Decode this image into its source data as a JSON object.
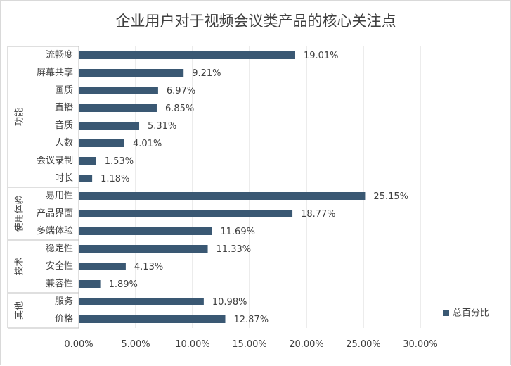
{
  "chart_data": {
    "type": "bar",
    "orientation": "horizontal",
    "title": "企业用户对于视频会议类产品的核心关注点",
    "xlabel": "",
    "ylabel": "",
    "xlim": [
      0,
      30
    ],
    "xticks": [
      "0.00%",
      "5.00%",
      "10.00%",
      "15.00%",
      "20.00%",
      "25.00%",
      "30.00%"
    ],
    "grid": true,
    "legend": {
      "position": "right",
      "entries": [
        "总百分比"
      ]
    },
    "bar_color": "#3a5873",
    "groups": [
      {
        "name": "功能",
        "categories": [
          "流畅度",
          "屏幕共享",
          "画质",
          "直播",
          "音质",
          "人数",
          "会议录制",
          "时长"
        ]
      },
      {
        "name": "使用体验",
        "categories": [
          "易用性",
          "产品界面",
          "多端体验"
        ]
      },
      {
        "name": "技术",
        "categories": [
          "稳定性",
          "安全性",
          "兼容性"
        ]
      },
      {
        "name": "其他",
        "categories": [
          "服务",
          "价格"
        ]
      }
    ],
    "categories": [
      "流畅度",
      "屏幕共享",
      "画质",
      "直播",
      "音质",
      "人数",
      "会议录制",
      "时长",
      "易用性",
      "产品界面",
      "多端体验",
      "稳定性",
      "安全性",
      "兼容性",
      "服务",
      "价格"
    ],
    "series": [
      {
        "name": "总百分比",
        "values": [
          19.01,
          9.21,
          6.97,
          6.85,
          5.31,
          4.01,
          1.53,
          1.18,
          25.15,
          18.77,
          11.69,
          11.33,
          4.13,
          1.89,
          10.98,
          12.87
        ],
        "labels": [
          "19.01%",
          "9.21%",
          "6.97%",
          "6.85%",
          "5.31%",
          "4.01%",
          "1.53%",
          "1.18%",
          "25.15%",
          "18.77%",
          "11.69%",
          "11.33%",
          "4.13%",
          "1.89%",
          "10.98%",
          "12.87%"
        ]
      }
    ]
  }
}
